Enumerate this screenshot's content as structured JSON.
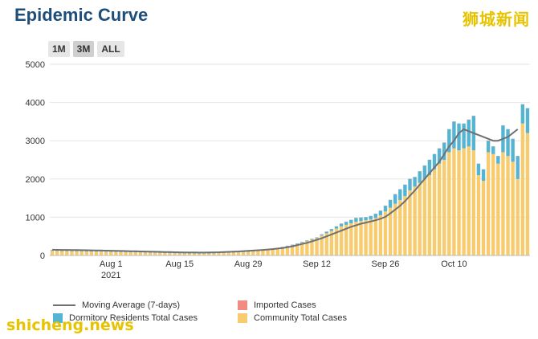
{
  "title": "Epidemic Curve",
  "watermark_top": "狮城新闻",
  "watermark_bottom": "shicheng.news",
  "range_buttons": [
    "1M",
    "3M",
    "ALL"
  ],
  "active_range": "3M",
  "colors": {
    "community": "#f8cc6e",
    "dormitory": "#56b4d3",
    "imported": "#f28b82",
    "moving_average": "#707070",
    "title": "#1f4e79",
    "watermark": "#e8c400"
  },
  "legend": [
    {
      "key": "moving_average",
      "label": "Moving Average (7-days)"
    },
    {
      "key": "imported",
      "label": "Imported Cases"
    },
    {
      "key": "dormitory",
      "label": "Dormitory Residents Total Cases"
    },
    {
      "key": "community",
      "label": "Community Total Cases"
    }
  ],
  "chart_data": {
    "type": "bar",
    "stacked": true,
    "ylim": [
      0,
      5000
    ],
    "yticks": [
      0,
      1000,
      2000,
      3000,
      4000,
      5000
    ],
    "xticks": [
      {
        "label": "Aug 1",
        "sub": "2021",
        "index": 12
      },
      {
        "label": "Aug 15",
        "sub": "",
        "index": 26
      },
      {
        "label": "Aug 29",
        "sub": "",
        "index": 40
      },
      {
        "label": "Sep 12",
        "sub": "",
        "index": 54
      },
      {
        "label": "Sep 26",
        "sub": "",
        "index": 68
      },
      {
        "label": "Oct 10",
        "sub": "",
        "index": 82
      }
    ],
    "grid": true,
    "legend_position": "bottom",
    "series": [
      {
        "name": "Community Total Cases",
        "key": "community",
        "values": [
          120,
          118,
          116,
          114,
          112,
          110,
          108,
          106,
          104,
          102,
          100,
          98,
          96,
          93,
          90,
          87,
          84,
          81,
          78,
          75,
          72,
          69,
          66,
          63,
          60,
          58,
          56,
          54,
          52,
          51,
          50,
          50,
          52,
          55,
          60,
          65,
          70,
          75,
          80,
          88,
          95,
          105,
          115,
          130,
          145,
          160,
          175,
          200,
          230,
          260,
          290,
          330,
          370,
          410,
          450,
          520,
          580,
          640,
          700,
          760,
          800,
          840,
          880,
          900,
          920,
          940,
          980,
          1050,
          1150,
          1250,
          1350,
          1450,
          1550,
          1700,
          1800,
          1900,
          2000,
          2100,
          2250,
          2400,
          2500,
          2700,
          2800,
          2750,
          2800,
          2850,
          2750,
          2100,
          1950,
          2700,
          2650,
          2400,
          2700,
          2600,
          2450,
          2000,
          3450,
          3200
        ]
      },
      {
        "name": "Dormitory Residents Total Cases",
        "key": "dormitory",
        "values": [
          20,
          20,
          20,
          20,
          20,
          20,
          20,
          20,
          20,
          20,
          20,
          20,
          20,
          20,
          20,
          20,
          20,
          20,
          20,
          20,
          20,
          20,
          20,
          20,
          20,
          20,
          20,
          20,
          20,
          20,
          20,
          20,
          20,
          20,
          20,
          20,
          20,
          20,
          20,
          20,
          20,
          20,
          20,
          20,
          20,
          20,
          20,
          20,
          20,
          20,
          20,
          20,
          20,
          20,
          20,
          30,
          40,
          50,
          60,
          70,
          80,
          90,
          100,
          90,
          80,
          90,
          110,
          120,
          150,
          200,
          250,
          280,
          300,
          300,
          250,
          300,
          350,
          400,
          400,
          400,
          450,
          600,
          700,
          700,
          650,
          700,
          900,
          300,
          300,
          300,
          200,
          200,
          700,
          700,
          600,
          600,
          500,
          650
        ]
      },
      {
        "name": "Imported Cases",
        "key": "imported",
        "values": [
          5,
          5,
          5,
          5,
          5,
          5,
          5,
          5,
          5,
          5,
          5,
          5,
          5,
          5,
          5,
          5,
          5,
          5,
          5,
          5,
          5,
          5,
          5,
          5,
          5,
          5,
          5,
          5,
          5,
          5,
          5,
          5,
          5,
          5,
          5,
          5,
          5,
          5,
          5,
          5,
          5,
          5,
          5,
          5,
          5,
          5,
          5,
          5,
          5,
          5,
          5,
          5,
          5,
          5,
          5,
          5,
          5,
          5,
          5,
          5,
          5,
          5,
          5,
          5,
          5,
          5,
          5,
          5,
          5,
          5,
          5,
          5,
          5,
          5,
          5,
          5,
          5,
          5,
          5,
          5,
          5,
          5,
          5,
          5,
          5,
          5,
          5,
          5,
          5,
          5,
          5,
          5,
          5,
          5,
          5,
          5,
          5,
          5
        ]
      },
      {
        "name": "Moving Average (7-days)",
        "key": "moving_average",
        "type": "line",
        "values": [
          150,
          148,
          146,
          144,
          142,
          140,
          138,
          136,
          134,
          132,
          130,
          127,
          124,
          121,
          118,
          115,
          112,
          109,
          106,
          103,
          100,
          97,
          94,
          91,
          88,
          85,
          82,
          80,
          78,
          77,
          76,
          76,
          78,
          81,
          85,
          90,
          95,
          100,
          106,
          113,
          120,
          128,
          136,
          145,
          155,
          165,
          180,
          195,
          215,
          240,
          270,
          300,
          330,
          370,
          410,
          450,
          500,
          550,
          600,
          650,
          700,
          750,
          790,
          830,
          860,
          890,
          920,
          960,
          1010,
          1100,
          1200,
          1300,
          1420,
          1560,
          1700,
          1850,
          2000,
          2150,
          2300,
          2450,
          2650,
          2850,
          3000,
          3200,
          3300,
          3250,
          3200,
          3150,
          3100,
          3050,
          3000,
          3000,
          3050,
          3100,
          3200,
          3300,
          null,
          null
        ]
      }
    ]
  }
}
